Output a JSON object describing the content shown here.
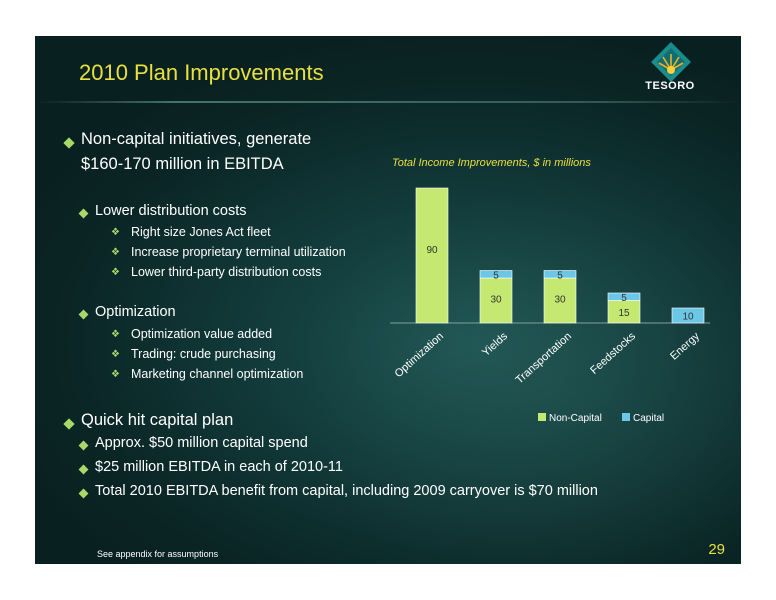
{
  "slide": {
    "title": "2010 Plan Improvements",
    "logo_text": "TESORO",
    "page_number": "29",
    "footnote": "See appendix for assumptions"
  },
  "bullets": {
    "noncapital_line1": "Non-capital initiatives, generate",
    "noncapital_line2": "$160-170 million in EBITDA",
    "distribution": "Lower distribution costs",
    "distribution_items": [
      "Right size Jones Act fleet",
      "Increase proprietary terminal utilization",
      "Lower third-party distribution costs"
    ],
    "optimization": "Optimization",
    "optimization_items": [
      "Optimization value added",
      "Trading: crude purchasing",
      "Marketing channel optimization"
    ],
    "quick_hit": "Quick hit capital plan",
    "capital_items": [
      "Approx. $50 million capital spend",
      "$25 million EBITDA in each of 2010-11",
      "Total 2010 EBITDA benefit from capital, including 2009 carryover is $70 million"
    ]
  },
  "colors": {
    "title": "#e8e040",
    "non_capital": "#c4e870",
    "capital": "#6cc6e6",
    "bullet": "#a8d868"
  },
  "chart_data": {
    "type": "bar",
    "title": "Total Income Improvements, $ in millions",
    "stacked": true,
    "categories": [
      "Optimization",
      "Yields",
      "Transportation",
      "Feedstocks",
      "Energy"
    ],
    "series": [
      {
        "name": "Non-Capital",
        "values": [
          90,
          30,
          30,
          15,
          0
        ],
        "labels": [
          "90",
          "30",
          "30",
          "15",
          ""
        ]
      },
      {
        "name": "Capital",
        "values": [
          0,
          5,
          5,
          5,
          10
        ],
        "labels": [
          "",
          "5",
          "5",
          "5",
          "10"
        ]
      }
    ],
    "ylim": [
      0,
      90
    ],
    "legend_position": "bottom"
  }
}
